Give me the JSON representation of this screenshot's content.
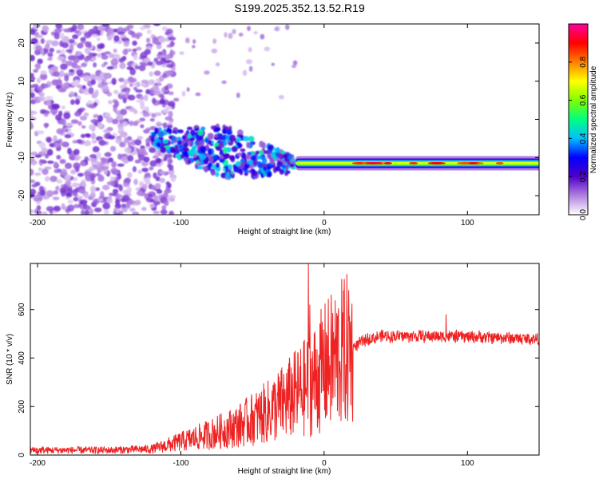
{
  "title": "S199.2025.352.13.52.R19",
  "chart_data": [
    {
      "type": "heatmap",
      "xlabel": "Height of straight line (km)",
      "ylabel": "Frequency (Hz)",
      "xlim": [
        -205,
        150
      ],
      "ylim": [
        -25,
        25
      ],
      "xticks": [
        -200,
        -100,
        0,
        100
      ],
      "yticks": [
        -20,
        -10,
        0,
        10,
        20
      ],
      "colorbar": {
        "label": "Normalized spectral amplitude",
        "range": [
          0.0,
          1.0
        ],
        "ticks": [
          0.0,
          0.2,
          0.4,
          0.6,
          0.8
        ],
        "tick_labels": [
          "0.0",
          "0.2",
          "0.4",
          "0.6",
          "0.8"
        ],
        "colormap": [
          "#ffffff",
          "#b080e0",
          "#5000c8",
          "#0000ff",
          "#00c0ff",
          "#00ff80",
          "#80ff00",
          "#ffff00",
          "#ff8000",
          "#ff0000",
          "#ff00a0"
        ]
      },
      "features": [
        {
          "name": "scattered noise",
          "x_range": [
            -205,
            -120
          ],
          "freq_range": [
            -25,
            25
          ],
          "amplitude": 0.15
        },
        {
          "name": "drifting signal",
          "x_range": [
            -120,
            -20
          ],
          "freq_start": -5,
          "freq_end": -12,
          "amplitude": 0.3
        },
        {
          "name": "steady carrier",
          "x_range": [
            -20,
            150
          ],
          "freq": -11.5,
          "amplitude": 0.9
        }
      ]
    },
    {
      "type": "line",
      "xlabel": "Height of straight line (km)",
      "ylabel": "SNR (10 * v/v)",
      "xlim": [
        -205,
        150
      ],
      "ylim": [
        0,
        790
      ],
      "xticks": [
        -200,
        -100,
        0,
        100
      ],
      "yticks": [
        0,
        200,
        400,
        600
      ],
      "series": [
        {
          "name": "SNR",
          "color": "#ee2222",
          "x": [
            -205,
            -180,
            -150,
            -120,
            -100,
            -80,
            -60,
            -40,
            -30,
            -20,
            -15,
            -10,
            0,
            10,
            20,
            30,
            40,
            60,
            80,
            100,
            120,
            150
          ],
          "values": [
            20,
            20,
            20,
            25,
            55,
            85,
            120,
            175,
            210,
            250,
            270,
            290,
            360,
            410,
            445,
            478,
            490,
            490,
            490,
            488,
            485,
            478
          ],
          "spikes": [
            {
              "x": -11,
              "y": 790
            },
            {
              "x": -10,
              "y": 620
            },
            {
              "x": -8,
              "y": 380
            },
            {
              "x": 85,
              "y": 580
            }
          ]
        }
      ]
    }
  ]
}
